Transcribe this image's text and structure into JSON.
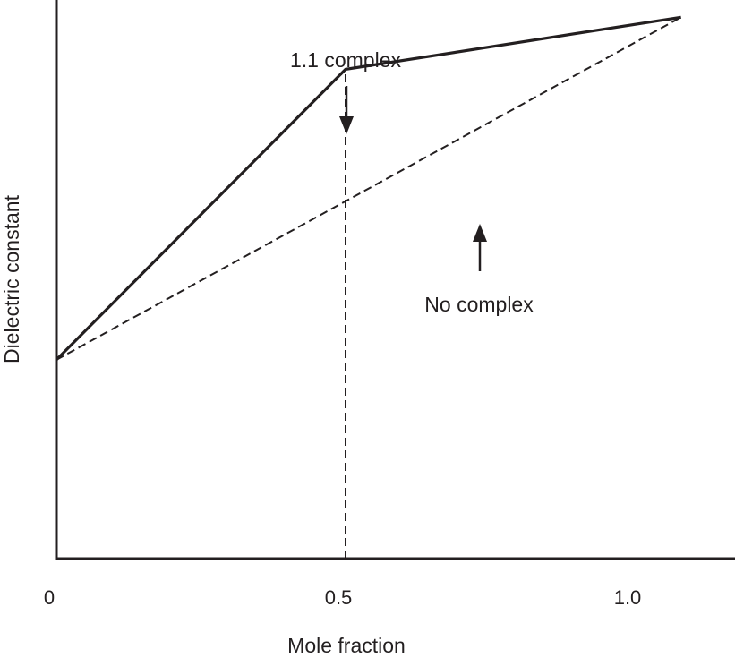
{
  "chart_data": {
    "type": "line",
    "title": "",
    "xlabel": "Mole fraction",
    "ylabel": "Dielectric constant",
    "x_ticks": [
      "0",
      "0.5",
      "1.0"
    ],
    "xlim": [
      0,
      1.18
    ],
    "ylim": [
      0,
      1
    ],
    "grid": false,
    "series": [
      {
        "style": "solid",
        "x": [
          0,
          0.5,
          1.08
        ],
        "y": [
          0.356,
          0.876,
          0.969
        ]
      },
      {
        "style": "dashed",
        "x": [
          0,
          1.08
        ],
        "y": [
          0.356,
          0.969
        ]
      }
    ],
    "reference_lines": [
      {
        "style": "dashed",
        "orientation": "vertical",
        "x": 0.5,
        "y_to": 0.876
      }
    ],
    "annotations": [
      {
        "text": "1.1 complex",
        "arrow": "down",
        "x": 0.5
      },
      {
        "text": "No complex",
        "arrow": "up",
        "x": 0.735
      }
    ]
  },
  "colors": {
    "line": "#231f20",
    "background": "#ffffff"
  }
}
